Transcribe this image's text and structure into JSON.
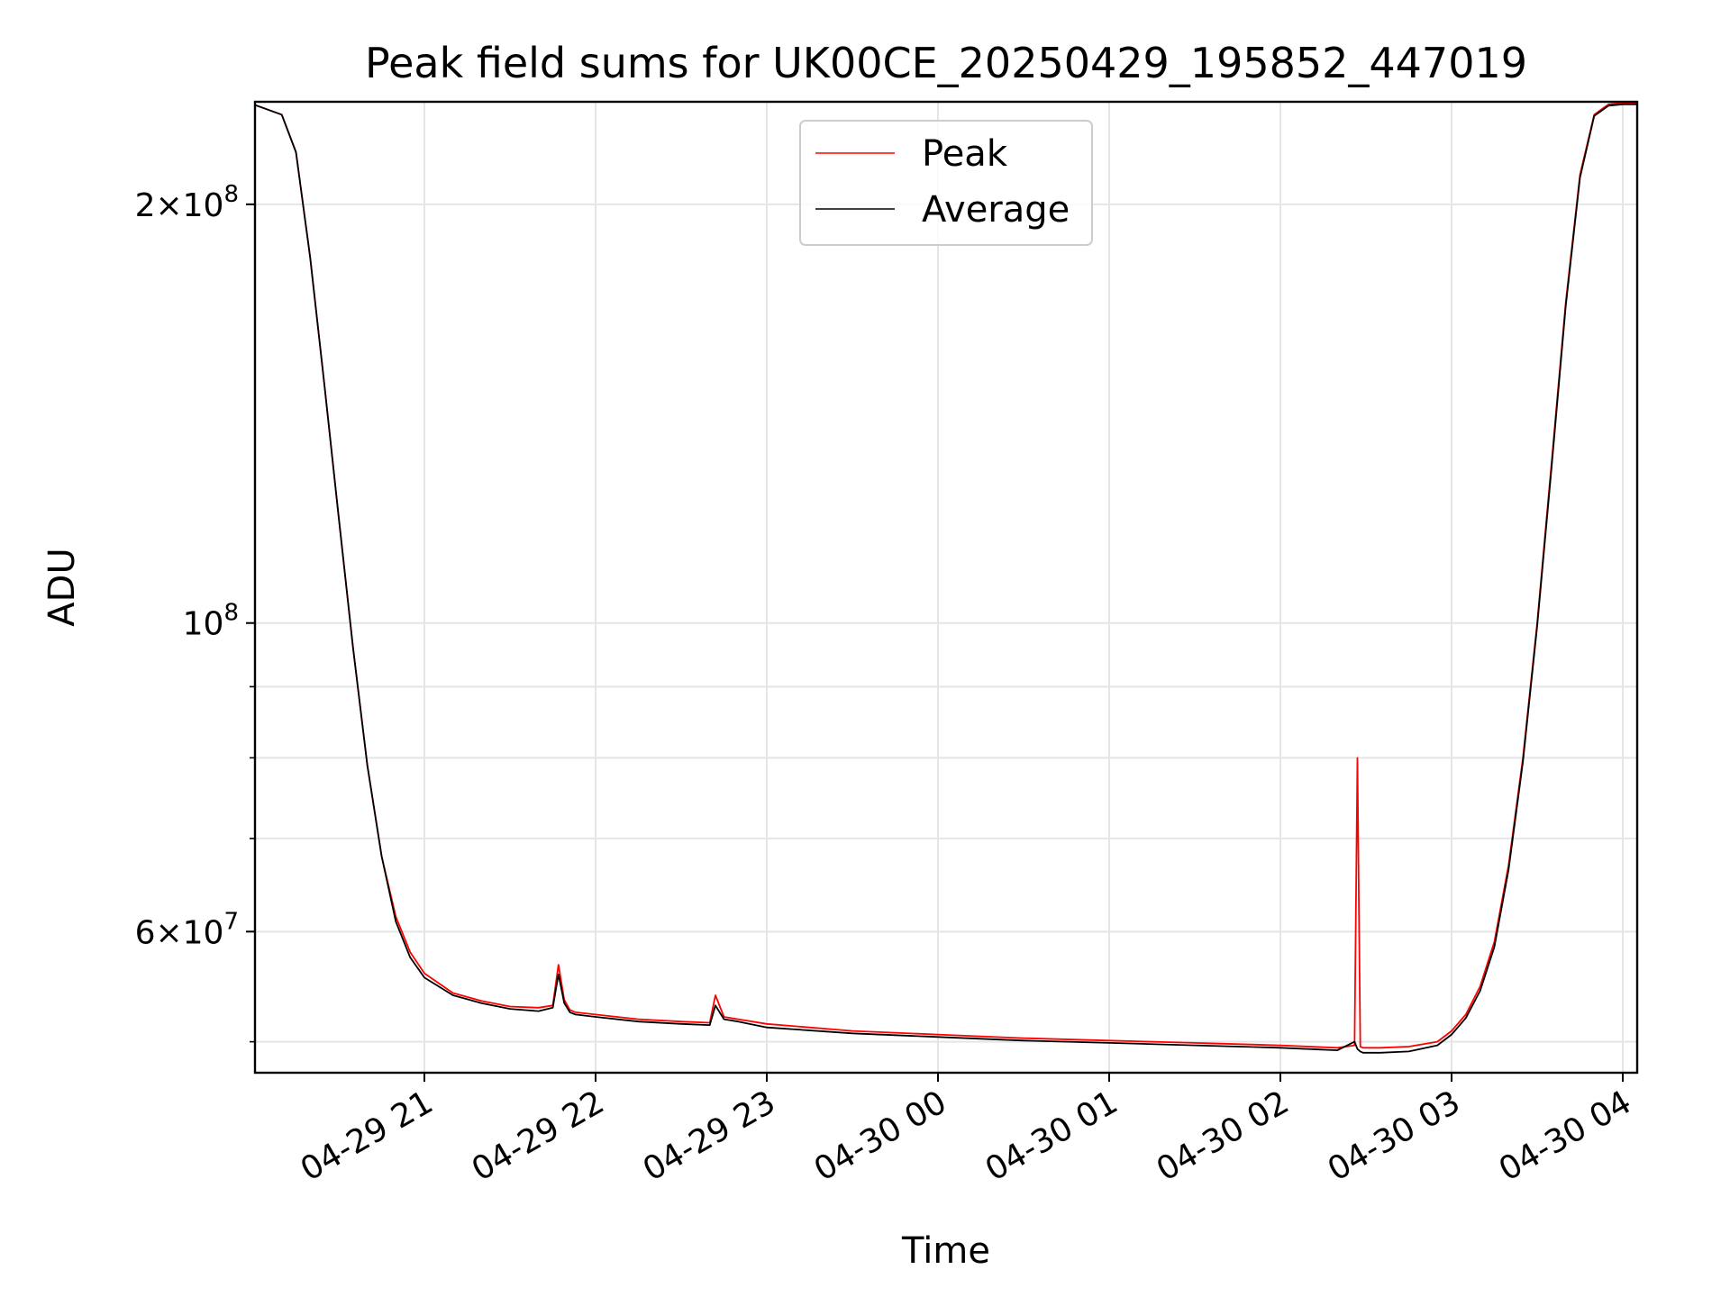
{
  "chart_data": {
    "type": "line",
    "title": "Peak field sums for UK00CE_20250429_195852_447019",
    "xlabel": "Time",
    "ylabel": "ADU",
    "yscale": "log",
    "ylim": [
      47500000,
      237000000
    ],
    "xlim": [
      "2025-04-29 20:00",
      "2025-04-30 04:00"
    ],
    "grid": true,
    "legend": "upper center",
    "x_ticks": [
      "04-29 21",
      "04-29 22",
      "04-29 23",
      "04-30 00",
      "04-30 01",
      "04-30 02",
      "04-30 03",
      "04-30 04"
    ],
    "y_ticks": [
      {
        "value": 200000000,
        "mantissa": "2",
        "exponent": "8"
      },
      {
        "value": 100000000,
        "mantissa": "",
        "exponent": "8"
      },
      {
        "value": 60000000,
        "mantissa": "6",
        "exponent": "7"
      }
    ],
    "y_minor_ticks": [
      50000000,
      70000000,
      80000000,
      90000000
    ],
    "series": [
      {
        "name": "Peak",
        "color": "#ff0000",
        "x": [
          "2025-04-29 20:00",
          "2025-04-29 20:10",
          "2025-04-29 20:15",
          "2025-04-29 20:20",
          "2025-04-29 20:25",
          "2025-04-29 20:30",
          "2025-04-29 20:35",
          "2025-04-29 20:40",
          "2025-04-29 20:45",
          "2025-04-29 20:50",
          "2025-04-29 20:55",
          "2025-04-29 21:00",
          "2025-04-29 21:10",
          "2025-04-29 21:20",
          "2025-04-29 21:30",
          "2025-04-29 21:40",
          "2025-04-29 21:45",
          "2025-04-29 21:47",
          "2025-04-29 21:49",
          "2025-04-29 21:51",
          "2025-04-29 21:53",
          "2025-04-29 22:00",
          "2025-04-29 22:15",
          "2025-04-29 22:30",
          "2025-04-29 22:40",
          "2025-04-29 22:42",
          "2025-04-29 22:45",
          "2025-04-29 22:50",
          "2025-04-29 23:00",
          "2025-04-29 23:30",
          "2025-04-30 00:00",
          "2025-04-30 00:30",
          "2025-04-30 01:00",
          "2025-04-30 01:30",
          "2025-04-30 02:00",
          "2025-04-30 02:20",
          "2025-04-30 02:26",
          "2025-04-30 02:27",
          "2025-04-30 02:28",
          "2025-04-30 02:29",
          "2025-04-30 02:35",
          "2025-04-30 02:45",
          "2025-04-30 02:55",
          "2025-04-30 03:00",
          "2025-04-30 03:05",
          "2025-04-30 03:10",
          "2025-04-30 03:15",
          "2025-04-30 03:20",
          "2025-04-30 03:25",
          "2025-04-30 03:30",
          "2025-04-30 03:35",
          "2025-04-30 03:40",
          "2025-04-30 03:45",
          "2025-04-30 03:50",
          "2025-04-30 03:55",
          "2025-04-30 04:00",
          "2025-04-30 04:05"
        ],
        "y": [
          236000000,
          232000000,
          218000000,
          183000000,
          148000000,
          119000000,
          96000000,
          79000000,
          68000000,
          61500000,
          58000000,
          56000000,
          54200000,
          53500000,
          53000000,
          52900000,
          53100000,
          56800000,
          53600000,
          52700000,
          52500000,
          52300000,
          51900000,
          51700000,
          51600000,
          54000000,
          52100000,
          51900000,
          51500000,
          50900000,
          50600000,
          50300000,
          50100000,
          49900000,
          49700000,
          49500000,
          49700000,
          80000000,
          49600000,
          49500000,
          49500000,
          49600000,
          50000000,
          50900000,
          52300000,
          54800000,
          59000000,
          67000000,
          80000000,
          100000000,
          130000000,
          170000000,
          210000000,
          232000000,
          236000000,
          236500000,
          236500000
        ]
      },
      {
        "name": "Average",
        "color": "#000000",
        "x": [
          "2025-04-29 20:00",
          "2025-04-29 20:10",
          "2025-04-29 20:15",
          "2025-04-29 20:20",
          "2025-04-29 20:25",
          "2025-04-29 20:30",
          "2025-04-29 20:35",
          "2025-04-29 20:40",
          "2025-04-29 20:45",
          "2025-04-29 20:50",
          "2025-04-29 20:55",
          "2025-04-29 21:00",
          "2025-04-29 21:10",
          "2025-04-29 21:20",
          "2025-04-29 21:30",
          "2025-04-29 21:40",
          "2025-04-29 21:45",
          "2025-04-29 21:47",
          "2025-04-29 21:49",
          "2025-04-29 21:51",
          "2025-04-29 21:53",
          "2025-04-29 22:00",
          "2025-04-29 22:15",
          "2025-04-29 22:30",
          "2025-04-29 22:40",
          "2025-04-29 22:42",
          "2025-04-29 22:45",
          "2025-04-29 22:50",
          "2025-04-29 23:00",
          "2025-04-29 23:30",
          "2025-04-30 00:00",
          "2025-04-30 00:30",
          "2025-04-30 01:00",
          "2025-04-30 01:30",
          "2025-04-30 02:00",
          "2025-04-30 02:20",
          "2025-04-30 02:26",
          "2025-04-30 02:27",
          "2025-04-30 02:28",
          "2025-04-30 02:29",
          "2025-04-30 02:35",
          "2025-04-30 02:45",
          "2025-04-30 02:55",
          "2025-04-30 03:00",
          "2025-04-30 03:05",
          "2025-04-30 03:10",
          "2025-04-30 03:15",
          "2025-04-30 03:20",
          "2025-04-30 03:25",
          "2025-04-30 03:30",
          "2025-04-30 03:35",
          "2025-04-30 03:40",
          "2025-04-30 03:45",
          "2025-04-30 03:50",
          "2025-04-30 03:55",
          "2025-04-30 04:00",
          "2025-04-30 04:05"
        ],
        "y": [
          236000000,
          232000000,
          218000000,
          183000000,
          148000000,
          119000000,
          96000000,
          79000000,
          68000000,
          61000000,
          57500000,
          55600000,
          54000000,
          53300000,
          52800000,
          52600000,
          52900000,
          55900000,
          53300000,
          52500000,
          52300000,
          52100000,
          51700000,
          51500000,
          51400000,
          53100000,
          51900000,
          51700000,
          51200000,
          50700000,
          50400000,
          50100000,
          49900000,
          49700000,
          49500000,
          49300000,
          50000000,
          49400000,
          49200000,
          49100000,
          49100000,
          49200000,
          49700000,
          50600000,
          52000000,
          54400000,
          58500000,
          66500000,
          79500000,
          99500000,
          129000000,
          169000000,
          209000000,
          231500000,
          235500000,
          236000000,
          236000000
        ]
      }
    ]
  }
}
